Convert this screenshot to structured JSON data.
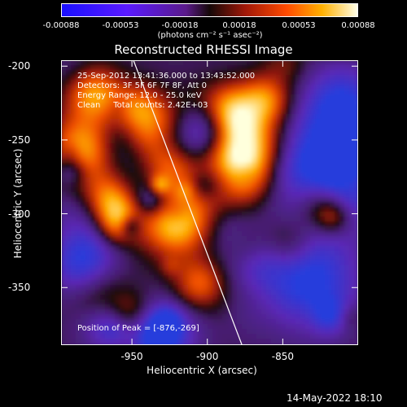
{
  "chart_data": {
    "type": "heatmap",
    "title": "Reconstructed RHESSI Image",
    "xlabel": "Heliocentric X (arcsec)",
    "ylabel": "Heliocentric Y (arcsec)",
    "xlim": [
      -997,
      -800
    ],
    "ylim": [
      -389,
      -196
    ],
    "xticks": [
      {
        "value": -950,
        "label": "-950"
      },
      {
        "value": -900,
        "label": "-900"
      },
      {
        "value": -850,
        "label": "-850"
      }
    ],
    "yticks": [
      {
        "value": -200,
        "label": "-200"
      },
      {
        "value": -250,
        "label": "-250"
      },
      {
        "value": -300,
        "label": "-300"
      },
      {
        "value": -350,
        "label": "-350"
      }
    ],
    "colorbar": {
      "label": "(photons cm⁻² s⁻¹ asec⁻²)",
      "range": [
        -0.00088,
        0.00088
      ],
      "ticks": [
        "-0.00088",
        "-0.00053",
        "-0.00018",
        "0.00018",
        "0.00053",
        "0.00088"
      ]
    },
    "limb_line": [
      [
        -949,
        -196
      ],
      [
        -877,
        -389
      ]
    ],
    "info_lines": [
      "25-Sep-2012 13:41:36.000 to 13:43:52.000",
      "Detectors: 3F 5F 6F 7F 8F, Att 0",
      "Energy Range: 12.0 - 25.0 keV",
      "Clean     Total counts: 2.42E+03"
    ],
    "peak_label": "Position of Peak = [-876,-269]",
    "peak": [
      -876,
      -269
    ]
  },
  "footer": {
    "date": "14-May-2022 18:10"
  }
}
